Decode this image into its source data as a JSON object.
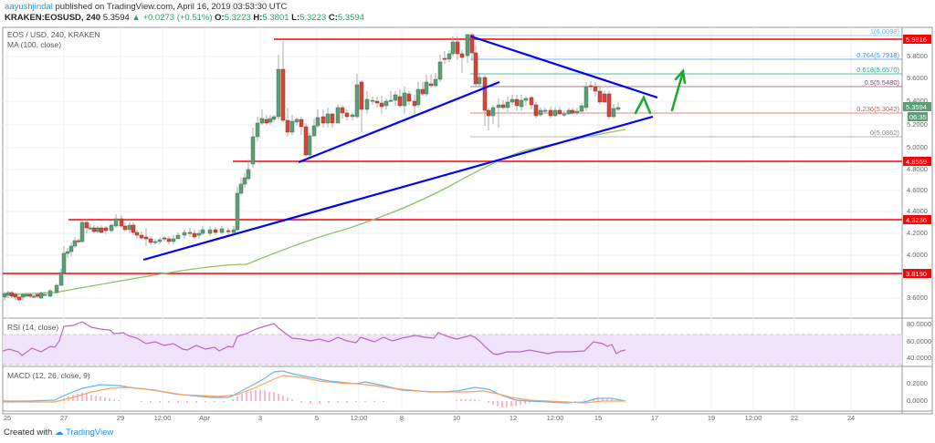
{
  "header": {
    "author": "aayushjindal",
    "published_text": " published on TradingView.com, April 16, 2019 03:53:30 UTC",
    "symbol": "KRAKEN:EOSUSD, 240",
    "last": "5.3594",
    "change": "+0.0273 (+0.51%)",
    "open_label": "O:",
    "open": "5.3223",
    "high_label": "H:",
    "high": "5.3801",
    "low_label": "L:",
    "low": "5.3223",
    "close_label": "C:",
    "close": "5.3594"
  },
  "panes": {
    "main_title": "EOS / USD, 240, KRAKEN",
    "ma_label": "MA (100, close)",
    "rsi_label": "RSI (14, close)",
    "macd_label": "MACD (12, 26, close, 9)"
  },
  "footer": {
    "created_with": "Created with",
    "brand": "TradingView"
  },
  "colors": {
    "up": "#5d9c76",
    "down": "#d0473a",
    "resistance": "#ff0000",
    "trendline": "#0000ff",
    "ma": "#8bc36b",
    "arrow": "#1aaa2a",
    "rsi": "#b565d0",
    "rsi_band": "#f0e3fb",
    "macd": "#64b5f6",
    "signal": "#ffa060",
    "hist": "#ff6fa8"
  },
  "chart_data": {
    "type": "candlestick",
    "title": "EOS / USD, 240, KRAKEN",
    "timeframe": "240",
    "price_axis": {
      "ticks": [
        "5.8000",
        "5.6000",
        "5.4000",
        "5.2000",
        "5.0000",
        "4.8000",
        "4.6000",
        "4.4000",
        "4.2000",
        "4.0000",
        "3.6000"
      ],
      "range": [
        3.55,
        6.05
      ]
    },
    "time_axis": {
      "ticks": [
        "25",
        "27",
        "29",
        "12:00",
        "Apr",
        "3",
        "5",
        "12:00",
        "8",
        "10",
        "12",
        "12:00",
        "15",
        "17",
        "19",
        "12:00",
        "22",
        "24"
      ]
    },
    "horizontal_levels": [
      {
        "label": "5.9816",
        "value": 5.9816
      },
      {
        "label": "4.8559",
        "value": 4.8559
      },
      {
        "label": "4.3236",
        "value": 4.3236
      },
      {
        "label": "3.8190",
        "value": 3.819
      }
    ],
    "fibonacci": [
      {
        "ratio": "1",
        "label": "1(6.0098)",
        "value": 6.0098,
        "color": "#64b5f6"
      },
      {
        "ratio": "0.764",
        "label": "0.764(5.7918)",
        "value": 5.7918,
        "color": "#4a90d9"
      },
      {
        "ratio": "0.618",
        "label": "0.618(5.6570)",
        "value": 5.657,
        "color": "#4cc9a0"
      },
      {
        "ratio": "0.5",
        "label": "0.5(5.5480)",
        "value": 5.548,
        "color": "#7a4a6a"
      },
      {
        "ratio": "0.236",
        "label": "0.236(5.3042)",
        "value": 5.3042,
        "color": "#e05050"
      },
      {
        "ratio": "0",
        "label": "0(5.0862)",
        "value": 5.0862,
        "color": "#888888"
      }
    ],
    "last_price_tag": {
      "price": "5.3594",
      "countdown": "06:35"
    },
    "indicators": {
      "ma": {
        "period": 100,
        "source": "close"
      },
      "rsi": {
        "period": 14,
        "source": "close",
        "ticks": [
          "80.0000",
          "60.0000",
          "40.0000"
        ],
        "band": [
          30,
          70
        ]
      },
      "macd": {
        "fast": 12,
        "slow": 26,
        "source": "close",
        "signal": 9,
        "ticks": [
          "0.2000",
          "0.0000"
        ]
      }
    },
    "annotations": [
      "Rising trendline (support)",
      "Contracting triangle",
      "Bullish breakout arrow projection"
    ]
  }
}
